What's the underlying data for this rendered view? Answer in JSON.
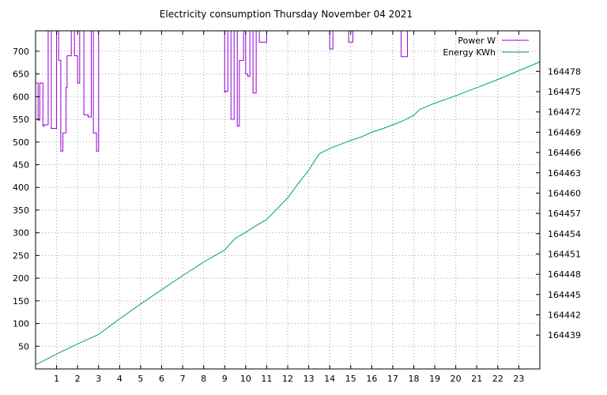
{
  "chart_data": {
    "type": "line",
    "title": "Electricity consumption Thursday November 04 2021",
    "xlabel": "",
    "ylabel": "",
    "y2label": "",
    "grid": true,
    "legend_position": "top-right",
    "xlim": [
      0,
      24
    ],
    "ylim": [
      0,
      745
    ],
    "y2lim": [
      164434,
      164484
    ],
    "x_ticks": [
      1,
      2,
      3,
      4,
      5,
      6,
      7,
      8,
      9,
      10,
      11,
      12,
      13,
      14,
      15,
      16,
      17,
      18,
      19,
      20,
      21,
      22,
      23
    ],
    "y_ticks": [
      50,
      100,
      150,
      200,
      250,
      300,
      350,
      400,
      450,
      500,
      550,
      600,
      650,
      700
    ],
    "y2_ticks": [
      164439,
      164442,
      164445,
      164448,
      164451,
      164454,
      164457,
      164460,
      164463,
      164466,
      164469,
      164472,
      164475,
      164478
    ],
    "series": [
      {
        "name": "Power W",
        "color": "#9400d3",
        "axis": "y",
        "step": true,
        "x": [
          0,
          0.12,
          0.2,
          0.35,
          0.42,
          0.6,
          0.75,
          1.0,
          1.1,
          1.2,
          1.3,
          1.45,
          1.5,
          1.7,
          1.85,
          2.0,
          2.1,
          2.3,
          2.5,
          2.65,
          2.75,
          2.9,
          3.0,
          9.0,
          9.05,
          9.15,
          9.3,
          9.45,
          9.6,
          9.7,
          9.9,
          10.0,
          10.1,
          10.2,
          10.35,
          10.5,
          10.65,
          10.75,
          11.0,
          11.2,
          13.95,
          14.0,
          14.15,
          14.25,
          14.4,
          14.6,
          14.75,
          14.9,
          15.1,
          15.2,
          17.25,
          17.4,
          17.55,
          17.7,
          17.85,
          19.7,
          19.8
        ],
        "y": [
          630,
          548,
          630,
          535,
          538,
          745,
          530,
          745,
          680,
          480,
          520,
          620,
          690,
          745,
          690,
          630,
          745,
          560,
          555,
          745,
          520,
          480,
          745,
          610,
          612,
          745,
          550,
          745,
          535,
          680,
          745,
          650,
          645,
          745,
          608,
          745,
          720,
          720,
          745,
          745,
          745,
          705,
          745,
          745,
          745,
          745,
          745,
          720,
          745,
          745,
          745,
          688,
          688,
          745,
          745,
          745,
          745
        ]
      },
      {
        "name": "Energy KWh",
        "color": "#009e73",
        "axis": "y2",
        "step": false,
        "x": [
          0,
          1,
          2,
          3,
          4,
          5,
          6,
          7,
          8,
          9,
          9.5,
          10,
          10.5,
          11,
          11.5,
          12,
          12.5,
          13,
          13.5,
          14,
          14.5,
          15,
          15.5,
          16,
          16.5,
          17,
          17.5,
          18,
          18.3,
          19,
          20,
          21,
          22,
          23,
          24
        ],
        "y": [
          164434.6,
          164436.2,
          164437.7,
          164439.1,
          164441.4,
          164443.6,
          164445.7,
          164447.8,
          164449.8,
          164451.6,
          164453.3,
          164454.2,
          164455.2,
          164456.1,
          164457.7,
          164459.3,
          164461.4,
          164463.4,
          164465.8,
          164466.6,
          164467.2,
          164467.8,
          164468.3,
          164469.0,
          164469.5,
          164470.1,
          164470.7,
          164471.5,
          164472.4,
          164473.3,
          164474.4,
          164475.6,
          164476.8,
          164478.1,
          164479.4
        ]
      }
    ]
  }
}
